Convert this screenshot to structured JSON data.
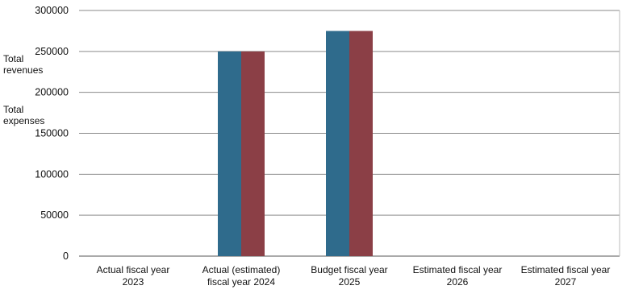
{
  "chart_data": {
    "type": "bar",
    "categories": [
      [
        "Actual fiscal year",
        "2023"
      ],
      [
        "Actual (estimated)",
        "fiscal year 2024"
      ],
      [
        "Budget fiscal year",
        "2025"
      ],
      [
        "Estimated fiscal year",
        "2026"
      ],
      [
        "Estimated fiscal year",
        "2027"
      ]
    ],
    "series": [
      {
        "name": [
          "Total",
          "revenues"
        ],
        "color": "#2f6b8c",
        "values": [
          null,
          250000,
          275000,
          null,
          null
        ]
      },
      {
        "name": [
          "Total",
          "expenses"
        ],
        "color": "#8b3f46",
        "values": [
          null,
          250000,
          275000,
          null,
          null
        ]
      }
    ],
    "yticks": [
      "0",
      "50000",
      "100000",
      "150000",
      "200000",
      "250000",
      "300000"
    ],
    "ylim": [
      0,
      300000
    ],
    "grid": true
  }
}
